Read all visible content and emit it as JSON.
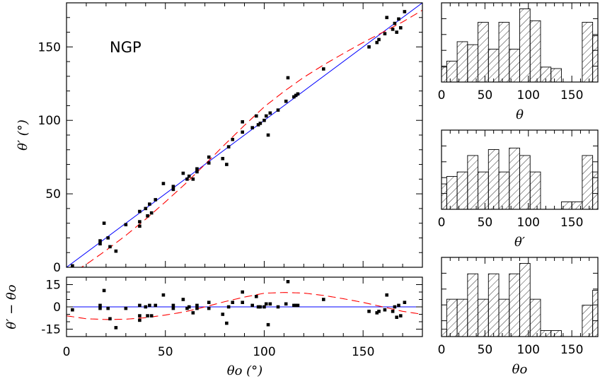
{
  "chart_data": [
    {
      "type": "scatter",
      "panel": "main",
      "annotation": "NGP",
      "ylabel": "θ′ (°)",
      "xlim": [
        0,
        180
      ],
      "ylim": [
        0,
        180
      ],
      "xticks": [
        0,
        50,
        100,
        150
      ],
      "yticks": [
        0,
        50,
        100,
        150
      ],
      "points": [
        [
          3,
          1
        ],
        [
          17,
          16
        ],
        [
          17,
          18
        ],
        [
          19,
          30
        ],
        [
          21,
          20
        ],
        [
          22,
          14
        ],
        [
          25,
          11
        ],
        [
          30,
          29
        ],
        [
          37,
          28
        ],
        [
          37,
          31
        ],
        [
          37,
          38
        ],
        [
          40,
          40
        ],
        [
          41,
          35
        ],
        [
          42,
          43
        ],
        [
          43,
          37
        ],
        [
          45,
          46
        ],
        [
          49,
          57
        ],
        [
          54,
          53
        ],
        [
          54,
          55
        ],
        [
          59,
          64
        ],
        [
          61,
          60
        ],
        [
          62,
          62
        ],
        [
          64,
          60
        ],
        [
          66,
          67
        ],
        [
          66,
          65
        ],
        [
          72,
          71
        ],
        [
          72,
          75
        ],
        [
          79,
          74
        ],
        [
          81,
          70
        ],
        [
          82,
          82
        ],
        [
          84,
          87
        ],
        [
          89,
          99
        ],
        [
          89,
          92
        ],
        [
          94,
          95
        ],
        [
          96,
          103
        ],
        [
          97,
          97
        ],
        [
          98,
          98
        ],
        [
          100,
          100
        ],
        [
          101,
          103
        ],
        [
          102,
          90
        ],
        [
          103,
          105
        ],
        [
          107,
          107
        ],
        [
          111,
          113
        ],
        [
          112,
          129
        ],
        [
          115,
          116
        ],
        [
          116,
          117
        ],
        [
          117,
          118
        ],
        [
          130,
          135
        ],
        [
          153,
          150
        ],
        [
          157,
          153
        ],
        [
          158,
          155
        ],
        [
          161,
          159
        ],
        [
          162,
          170
        ],
        [
          165,
          162
        ],
        [
          166,
          166
        ],
        [
          167,
          160
        ],
        [
          168,
          169
        ],
        [
          169,
          163
        ],
        [
          171,
          174
        ]
      ],
      "reference_line": {
        "x": [
          0,
          180
        ],
        "y": [
          0,
          180
        ],
        "color": "#0000ff"
      },
      "model_curve": {
        "color": "#ff0000",
        "style": "dashed",
        "x": [
          0,
          10,
          20,
          30,
          40,
          50,
          60,
          70,
          80,
          90,
          100,
          110,
          120,
          130,
          140,
          150,
          160,
          170,
          180
        ],
        "dy": [
          -6,
          -8,
          -8.5,
          -8.3,
          -7.3,
          -5.5,
          -3.3,
          0,
          3.5,
          6.6,
          9.2,
          9.7,
          9.3,
          7.7,
          5.5,
          3.0,
          0,
          -3,
          -5
        ]
      },
      "colors": {
        "points": "#000000",
        "line": "#0000ff",
        "curve": "#ff0000"
      }
    },
    {
      "type": "scatter",
      "panel": "residuals",
      "xlabel": "θo (°)",
      "ylabel": "θ′ − θo",
      "xlim": [
        0,
        180
      ],
      "ylim": [
        -20,
        20
      ],
      "xticks": [
        0,
        50,
        100,
        150
      ],
      "yticks": [
        -15,
        0,
        15
      ]
    },
    {
      "type": "bar",
      "panel": "hist-theta",
      "xlabel": "θ",
      "xlim": [
        0,
        180
      ],
      "xticks": [
        0,
        50,
        100,
        150
      ],
      "bin_edges": [
        0,
        6,
        18,
        30,
        42,
        54,
        66,
        78,
        90,
        102,
        114,
        126,
        138,
        150,
        162,
        174,
        180
      ],
      "counts": [
        1,
        1.4,
        2.7,
        2.5,
        4,
        2.2,
        4,
        2.2,
        4.9,
        4.1,
        1.0,
        0.9,
        0,
        0,
        4,
        3.1
      ]
    },
    {
      "type": "bar",
      "panel": "hist-theta-prime",
      "xlabel": "θ′",
      "xlim": [
        0,
        180
      ],
      "xticks": [
        0,
        50,
        100,
        150
      ],
      "bin_edges": [
        0,
        6,
        18,
        30,
        42,
        54,
        66,
        78,
        90,
        102,
        114,
        126,
        138,
        150,
        162,
        174,
        180
      ],
      "counts": [
        1.7,
        2.2,
        2.5,
        3.6,
        2.5,
        4,
        2.5,
        4.1,
        3.6,
        2.5,
        0,
        0,
        0.5,
        0.5,
        3.6,
        2.5
      ]
    },
    {
      "type": "bar",
      "panel": "hist-theta-o",
      "xlabel": "θo",
      "xlim": [
        0,
        180
      ],
      "xticks": [
        0,
        50,
        100,
        150
      ],
      "bin_edges": [
        0,
        6,
        18,
        30,
        42,
        54,
        66,
        78,
        90,
        102,
        114,
        126,
        138,
        150,
        162,
        174,
        180
      ],
      "counts": [
        0.5,
        2.5,
        2.5,
        4.2,
        2.5,
        4.2,
        2.5,
        4.2,
        4.9,
        2.5,
        0.4,
        0.4,
        0,
        0,
        2.1,
        3.1
      ]
    }
  ]
}
